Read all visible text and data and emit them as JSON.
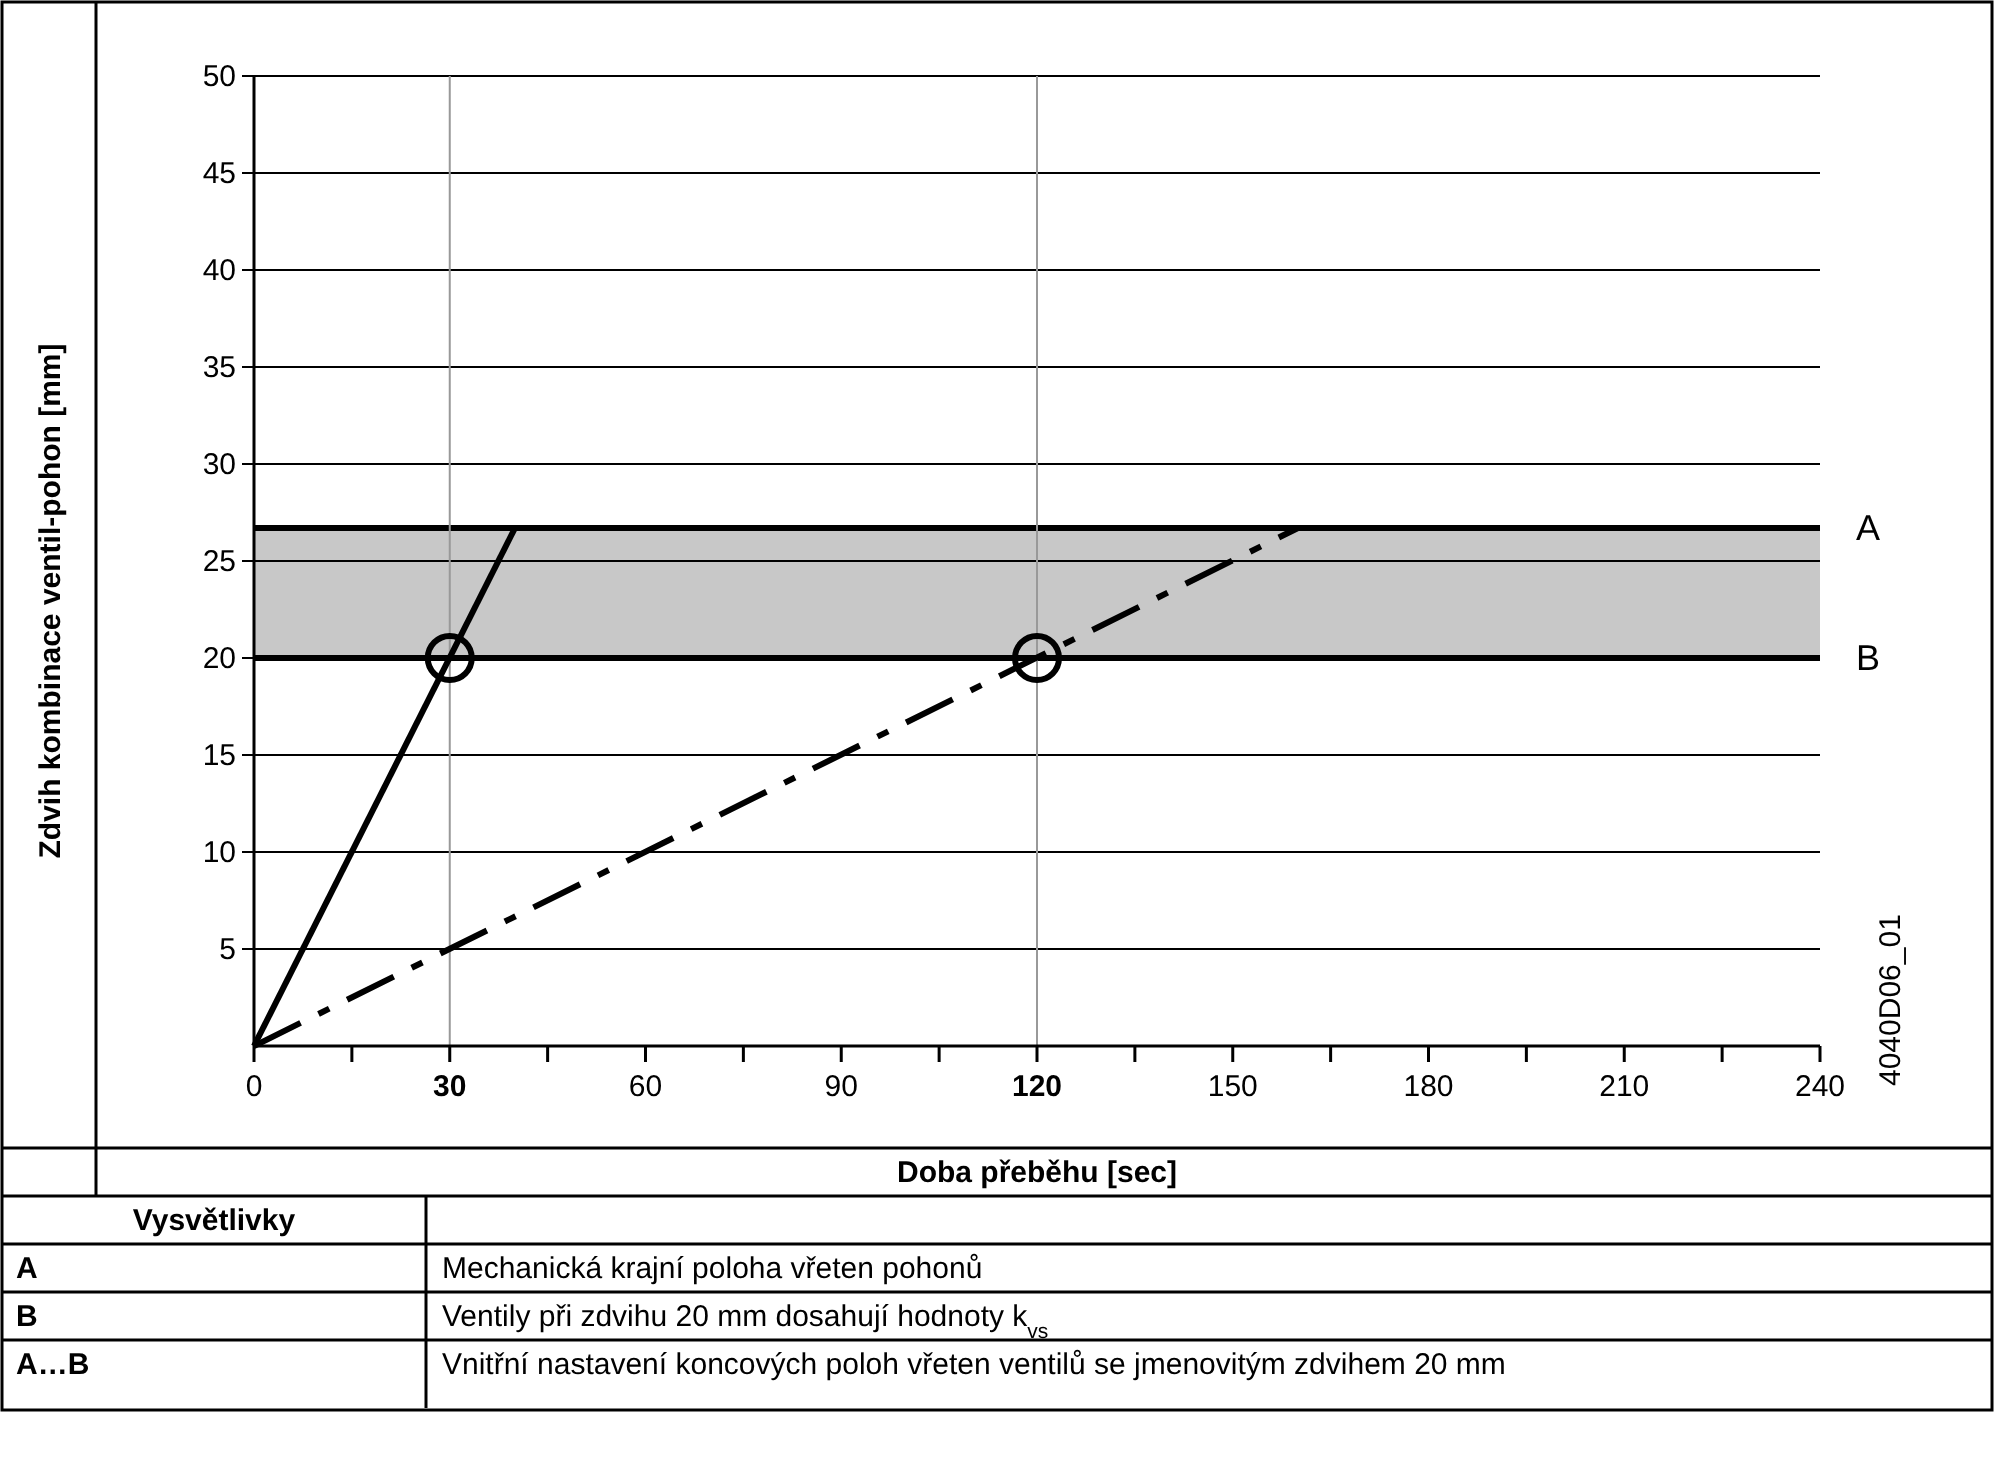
{
  "chart_data": {
    "type": "line",
    "xlabel": "Doba přeběhu [sec]",
    "ylabel": "Zdvih kombinace ventil-pohon [mm]",
    "xlim": [
      0,
      240
    ],
    "ylim": [
      0,
      50
    ],
    "xticks": [
      0,
      {
        "value": 15,
        "label": null
      },
      30,
      {
        "value": 45,
        "label": null
      },
      60,
      {
        "value": 75,
        "label": null
      },
      90,
      {
        "value": 105,
        "label": null
      },
      120,
      {
        "value": 135,
        "label": null
      },
      150,
      {
        "value": 165,
        "label": null
      },
      180,
      {
        "value": 195,
        "label": null
      },
      210,
      {
        "value": 225,
        "label": null
      },
      240
    ],
    "yticks": [
      5,
      10,
      15,
      20,
      25,
      30,
      35,
      40,
      45,
      50
    ],
    "grid": "y",
    "series": [
      {
        "color": "#000000",
        "line_style": "solid",
        "x": [
          0,
          40
        ],
        "values": [
          0,
          26.7
        ]
      },
      {
        "color": "#000000",
        "line_style": "dashed",
        "x": [
          0,
          160
        ],
        "values": [
          0,
          26.7
        ]
      },
      {
        "type": "scatter",
        "color": "#000000",
        "marker": "circle",
        "x": [
          30,
          120
        ],
        "values": [
          20,
          20
        ]
      }
    ],
    "ref_lines": [
      {
        "axis": "y",
        "value": 26.7,
        "label": "A",
        "color": "#000000"
      },
      {
        "axis": "y",
        "value": 20,
        "label": "B",
        "color": "#000000"
      },
      {
        "axis": "x",
        "value": 30,
        "label": null,
        "color": "#999999"
      },
      {
        "axis": "x",
        "value": 120,
        "label": null,
        "color": "#999999"
      }
    ],
    "bands": [
      {
        "axis": "y",
        "from": 20,
        "to": 26.7,
        "label": null,
        "color": "#c8c8c8"
      }
    ],
    "annotations": [
      "4040D06_01",
      "Vysvětlivky",
      "A",
      "Mechanická krajní poloha vřeten pohonů",
      "B",
      "Ventily při zdvihu 20 mm dosahují hodnoty k$_{vs}$",
      "A…B",
      "Vnitřní nastavení koncových poloh vřeten ventilů se jmenovitým zdvihem 20 mm"
    ]
  }
}
